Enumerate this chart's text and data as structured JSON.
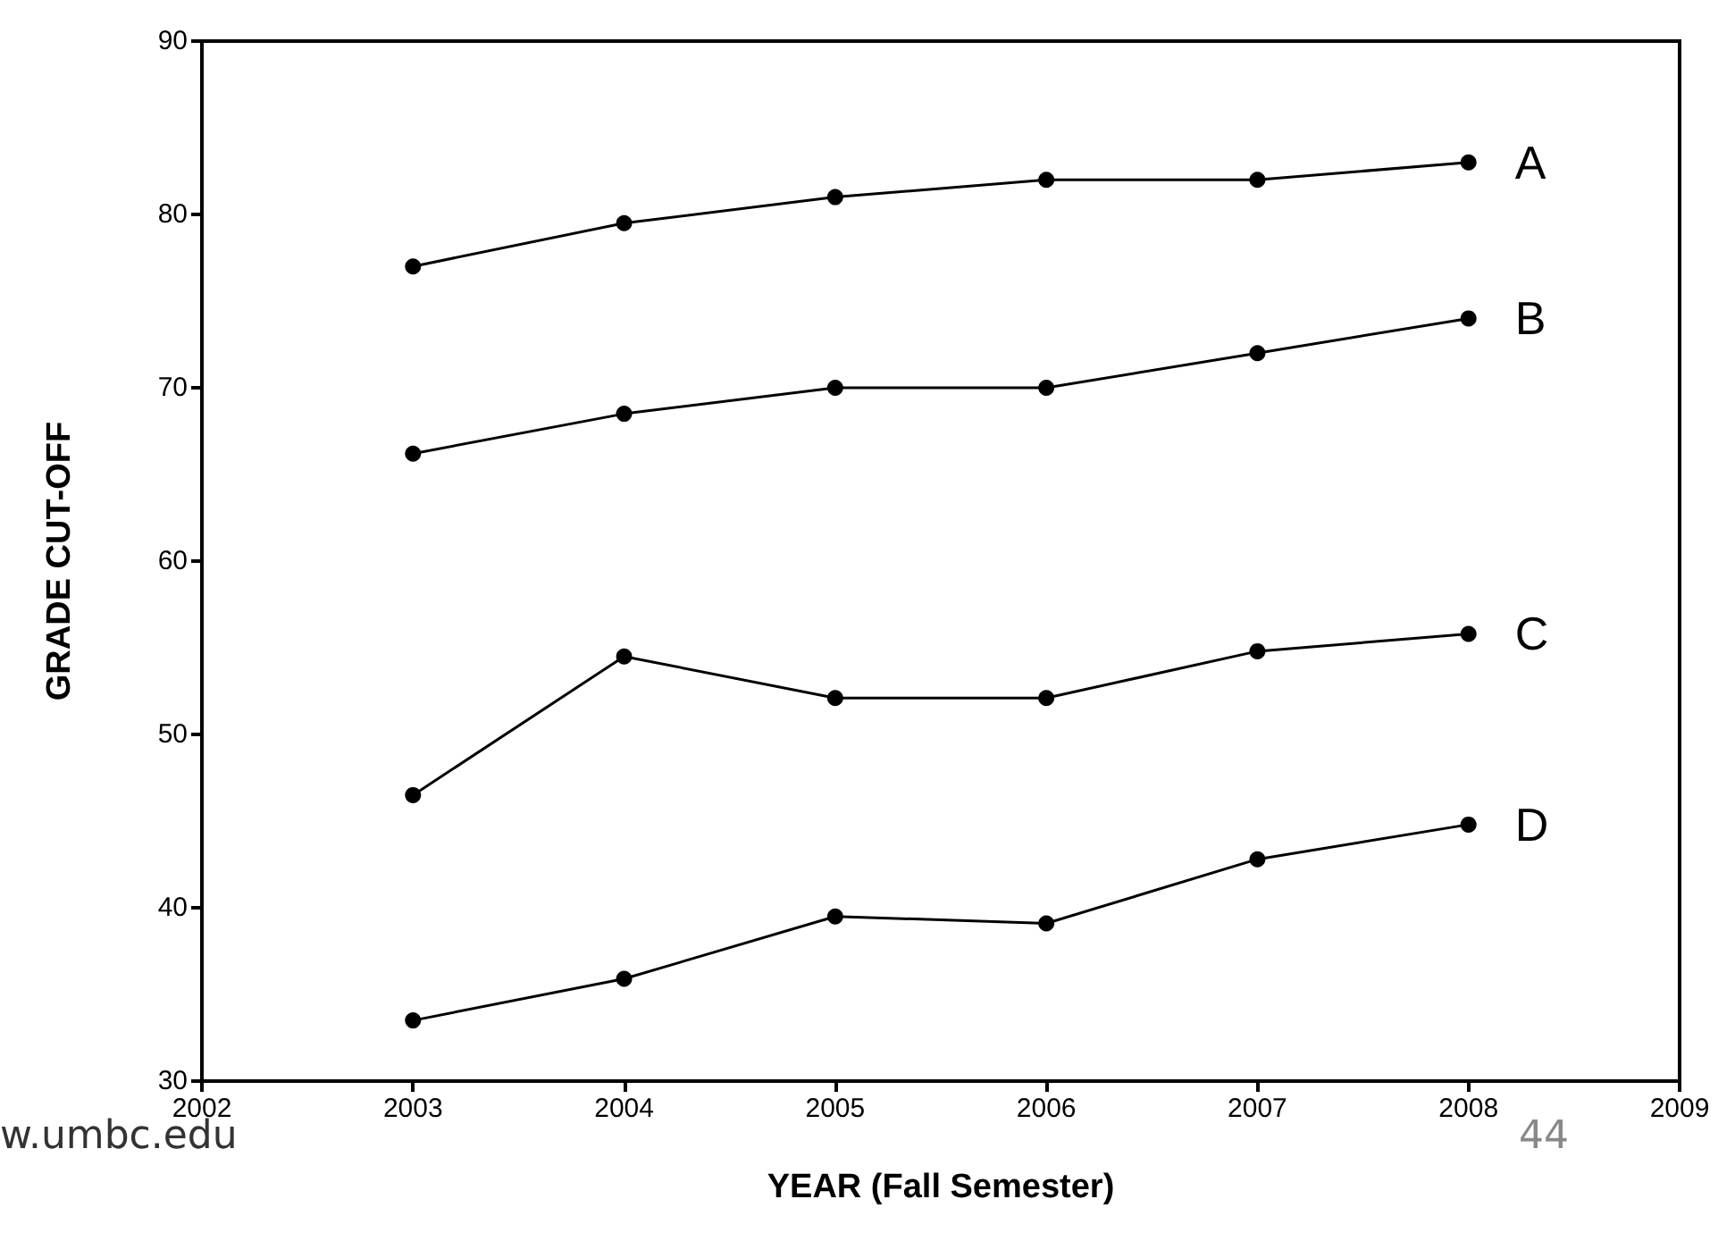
{
  "chart_data": {
    "type": "line",
    "xlabel": "YEAR (Fall Semester)",
    "ylabel": "GRADE CUT-OFF",
    "x": [
      2003,
      2004,
      2005,
      2006,
      2007,
      2008
    ],
    "series": [
      {
        "name": "A",
        "color": "#000000",
        "values": [
          77,
          79.5,
          81,
          82,
          82,
          83
        ]
      },
      {
        "name": "B",
        "color": "#000000",
        "values": [
          66.2,
          68.5,
          70,
          70,
          72,
          74
        ]
      },
      {
        "name": "C",
        "color": "#000000",
        "values": [
          46.5,
          54.5,
          52.1,
          52.1,
          54.8,
          55.8
        ]
      },
      {
        "name": "D",
        "color": "#000000",
        "values": [
          33.5,
          35.9,
          39.5,
          39.1,
          42.8,
          44.8
        ]
      }
    ],
    "xlim": [
      2002,
      2009
    ],
    "xticks": [
      2002,
      2003,
      2004,
      2005,
      2006,
      2007,
      2008,
      2009
    ],
    "ylim": [
      30,
      90
    ],
    "yticks": [
      30,
      40,
      50,
      60,
      70,
      80,
      90
    ],
    "grid": false,
    "legend": false,
    "marker": "circle",
    "line_style": "solid",
    "annotations": [
      "w.umbc.edu",
      "44"
    ]
  }
}
